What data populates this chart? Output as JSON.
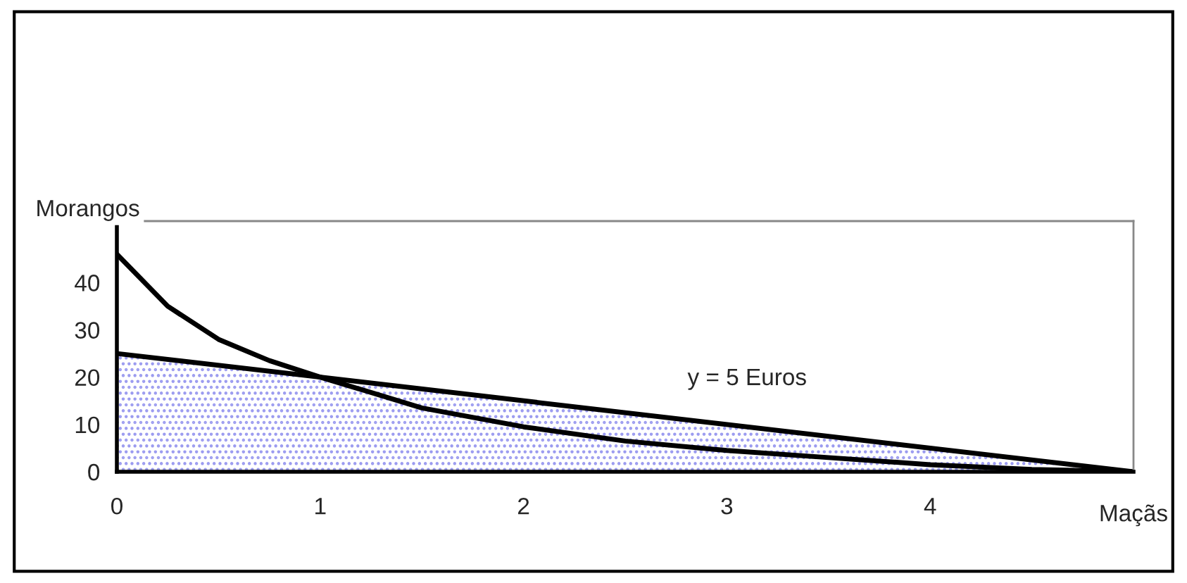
{
  "chart_data": {
    "type": "line",
    "xlabel": "Maçãs",
    "ylabel": "Morangos",
    "series": [
      {
        "type": "area",
        "color": "#9a9af0",
        "x": [
          0,
          5
        ],
        "values": [
          25,
          0
        ]
      },
      {
        "color": "#000000",
        "x": [
          0,
          0.25,
          0.5,
          0.75,
          1,
          1.5,
          2,
          2.5,
          3,
          3.5,
          4,
          4.5,
          5
        ],
        "values": [
          46,
          35,
          28,
          23.5,
          20,
          13.5,
          9.5,
          6.5,
          4.5,
          3,
          1.5,
          0.5,
          0
        ]
      }
    ],
    "annotations": [
      "y = 5 Euros"
    ],
    "xlim": [
      0,
      5
    ],
    "ylim": [
      0,
      53
    ],
    "xticks": [
      0,
      1,
      2,
      3,
      4,
      {
        "value": 5,
        "label": null
      }
    ],
    "yticks": [
      0,
      10,
      20,
      30,
      40
    ],
    "grid": false,
    "legend": false
  }
}
